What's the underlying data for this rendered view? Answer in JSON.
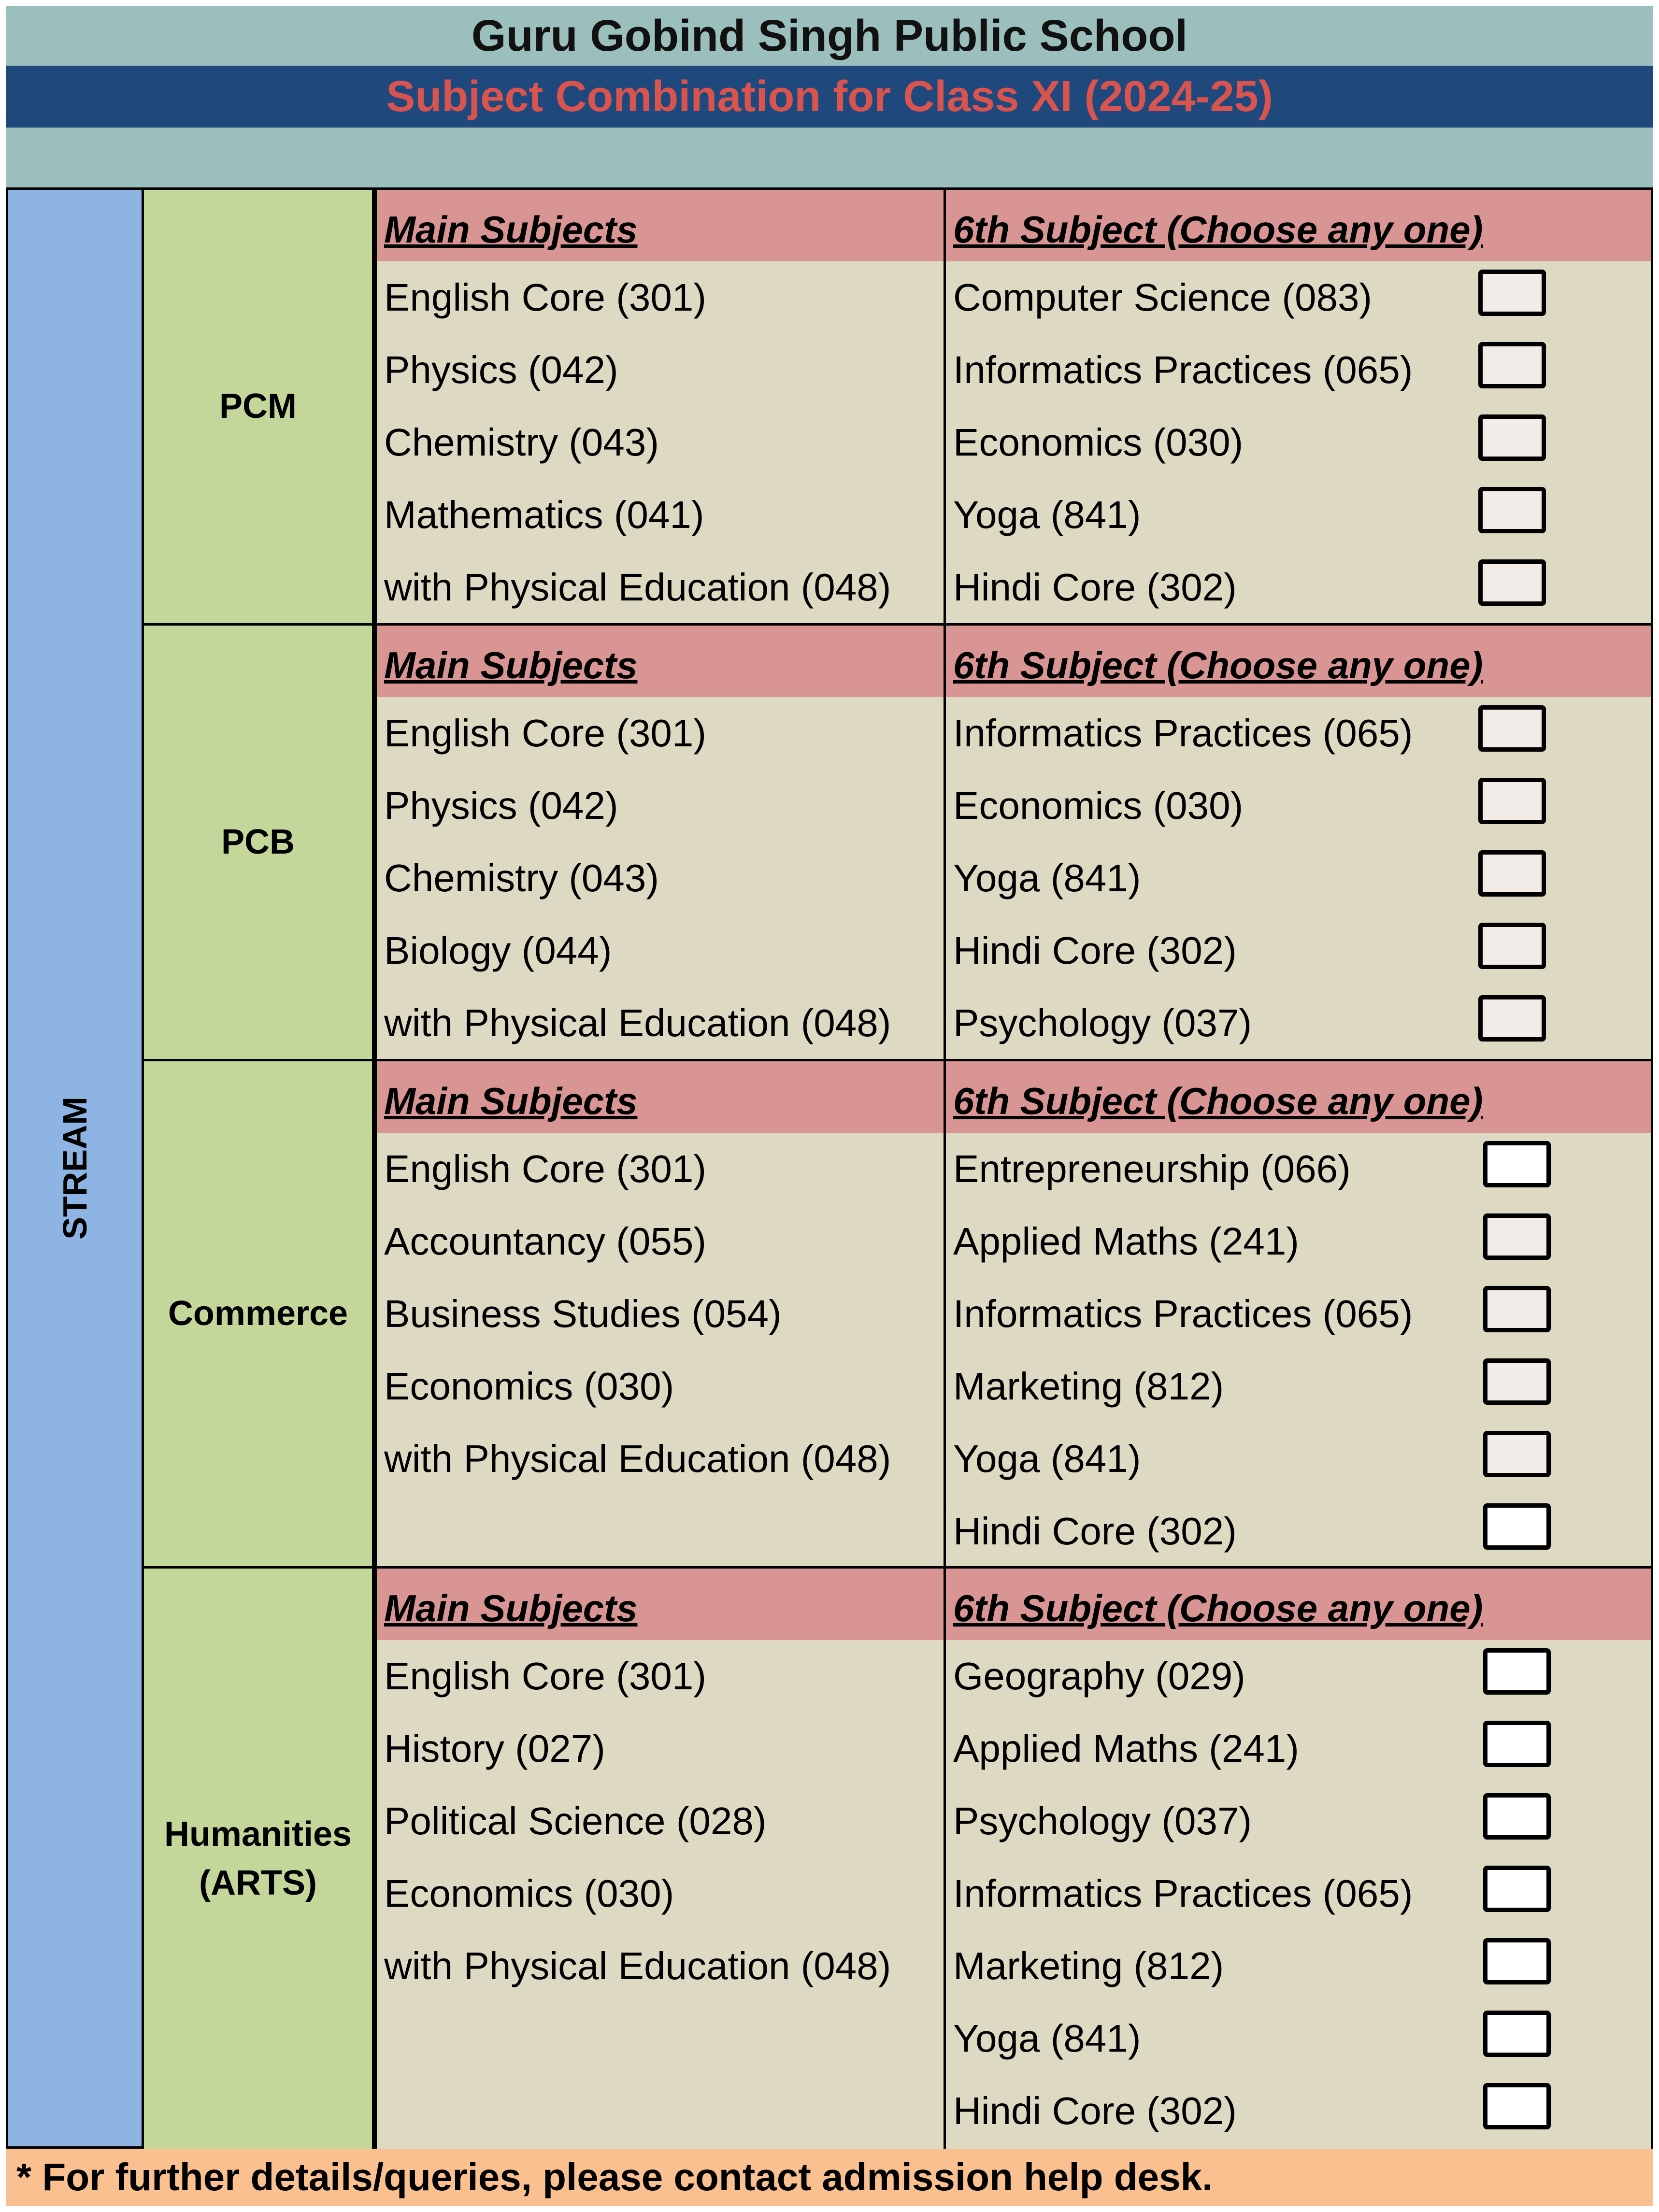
{
  "school_name": "Guru Gobind Singh Public School",
  "title": "Subject Combination for Class XI (2024-25)",
  "stream_label": "STREAM",
  "main_header": "Main Subjects",
  "sixth_header": "6th Subject (Choose any one)",
  "streams": [
    {
      "name": "PCM",
      "main": [
        "English Core (301)",
        "Physics (042)",
        "Chemistry (043)",
        "Mathematics (041)",
        "with Physical Education (048)"
      ],
      "sixth": [
        "Computer Science (083)",
        "Informatics Practices (065)",
        "Economics (030)",
        "Yoga (841)",
        "Hindi Core (302)"
      ]
    },
    {
      "name": "PCB",
      "main": [
        "English Core (301)",
        "Physics (042)",
        "Chemistry (043)",
        "Biology (044)",
        "with Physical Education (048)"
      ],
      "sixth": [
        "Informatics Practices (065)",
        "Economics (030)",
        "Yoga (841)",
        "Hindi Core (302)",
        "Psychology (037)"
      ]
    },
    {
      "name": "Commerce",
      "main": [
        "English Core (301)",
        "Accountancy (055)",
        "Business Studies (054)",
        "Economics (030)",
        "with Physical Education (048)"
      ],
      "sixth": [
        "Entrepreneurship (066)",
        "Applied Maths (241)",
        "Informatics Practices (065)",
        "Marketing (812)",
        "Yoga (841)",
        "Hindi Core (302)"
      ]
    },
    {
      "name": "Humanities\n(ARTS)",
      "main": [
        "English Core (301)",
        "History (027)",
        "Political Science (028)",
        "Economics (030)",
        "with Physical Education (048)"
      ],
      "sixth": [
        "Geography (029)",
        "Applied Maths (241)",
        "Psychology (037)",
        "Informatics Practices (065)",
        "Marketing (812)",
        "Yoga (841)",
        "Hindi Core (302)"
      ]
    }
  ],
  "footer": "* For further details/queries, please contact admission help desk.",
  "colors": {
    "title_band": "#9bbfbc",
    "subtitle_band": "#1f497d",
    "subtitle_text": "#d9534f",
    "stream_column": "#8db4e2",
    "stream_name_cell": "#c4d79b",
    "subject_area": "#ddd9c3",
    "header_row": "#d99594",
    "footer": "#fac090"
  }
}
